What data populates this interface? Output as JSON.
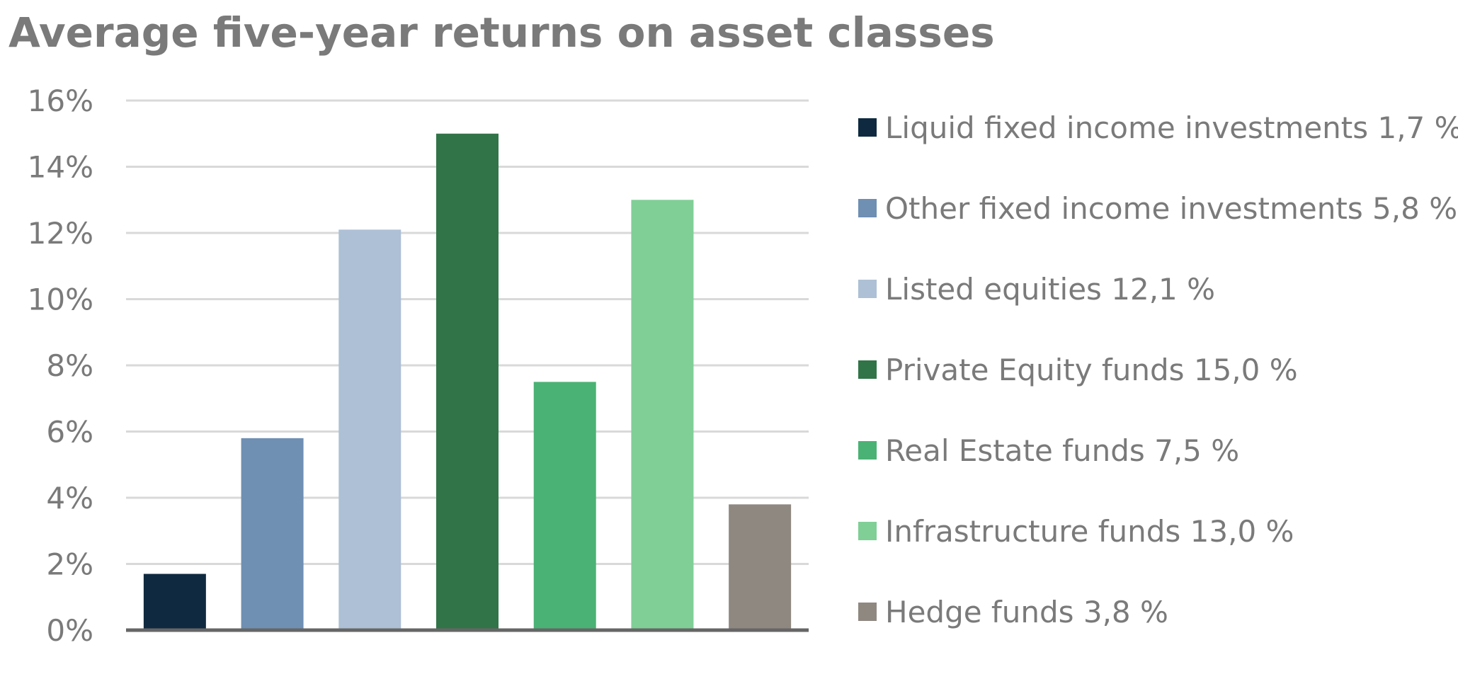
{
  "chart_data": {
    "type": "bar",
    "title": "Average five-year returns on asset classes",
    "categories": [
      "Liquid fixed income investments",
      "Other fixed income investments",
      "Listed equities",
      "Private Equity funds",
      "Real Estate funds",
      "Infrastructure funds",
      "Hedge funds"
    ],
    "values": [
      1.7,
      5.8,
      12.1,
      15.0,
      7.5,
      13.0,
      3.8
    ],
    "colors": [
      "#0f2a40",
      "#6f8fb3",
      "#adc0d5",
      "#317448",
      "#4ab274",
      "#80cf97",
      "#8f8881"
    ],
    "legend_labels": [
      "Liquid fixed income investments 1,7 %",
      "Other fixed income investments 5,8 %",
      "Listed equities 12,1 %",
      "Private Equity funds 15,0 %",
      "Real Estate funds 7,5 %",
      "Infrastructure funds 13,0 %",
      "Hedge funds 3,8 %"
    ],
    "y_ticks": [
      "0%",
      "2%",
      "4%",
      "6%",
      "8%",
      "10%",
      "12%",
      "14%",
      "16%"
    ],
    "ylim": [
      0,
      16
    ],
    "ytick_step": 2,
    "grid": true,
    "legend_position": "right",
    "colors_ui": {
      "grid": "#d9d9d9",
      "axis": "#666666",
      "text": "#7a7a7a"
    }
  }
}
